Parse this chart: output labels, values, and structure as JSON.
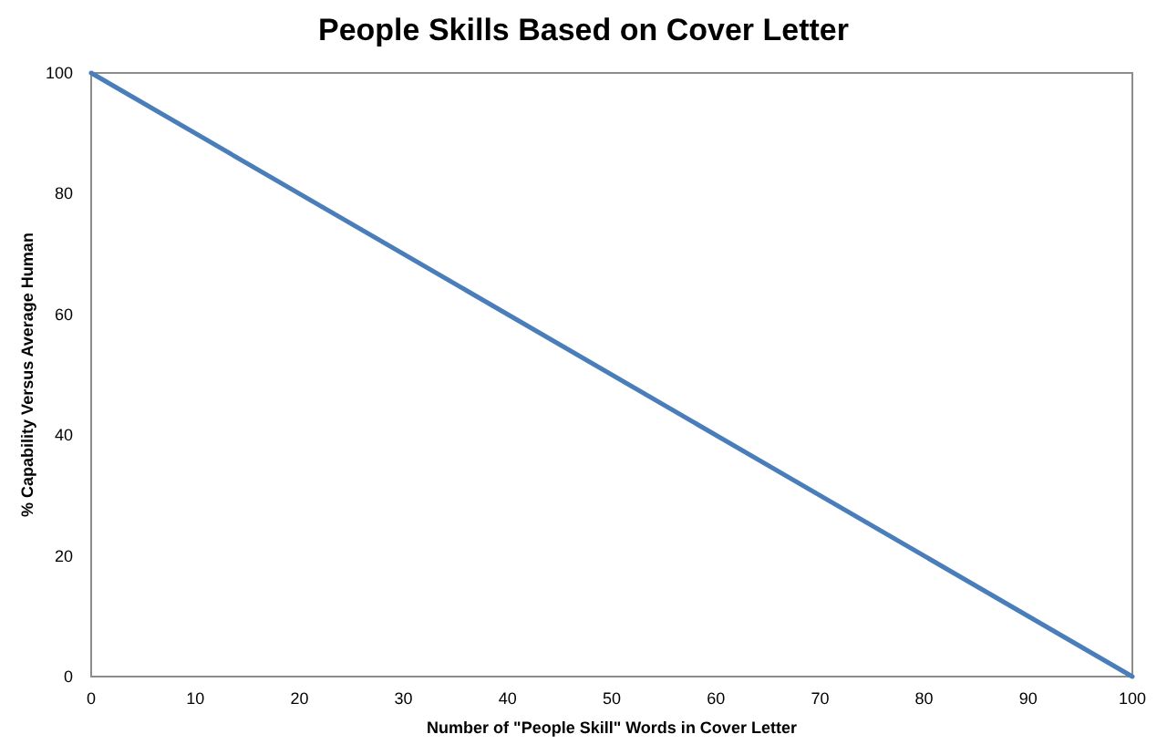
{
  "chart_data": {
    "type": "line",
    "title": "People Skills Based on Cover Letter",
    "xlabel": "Number of \"People Skill\" Words in Cover Letter",
    "ylabel": "% Capability Versus Average Human",
    "x": [
      0,
      100
    ],
    "series": [
      {
        "color": "#4a7ebb",
        "values": [
          100,
          0
        ]
      }
    ],
    "xlim": [
      0,
      100
    ],
    "xticks": [
      0,
      10,
      20,
      30,
      40,
      50,
      60,
      70,
      80,
      90,
      100
    ],
    "ylim": [
      0,
      100
    ],
    "yticks": [
      0,
      20,
      40,
      60,
      80,
      100
    ],
    "grid": false,
    "line_style": "solid"
  }
}
